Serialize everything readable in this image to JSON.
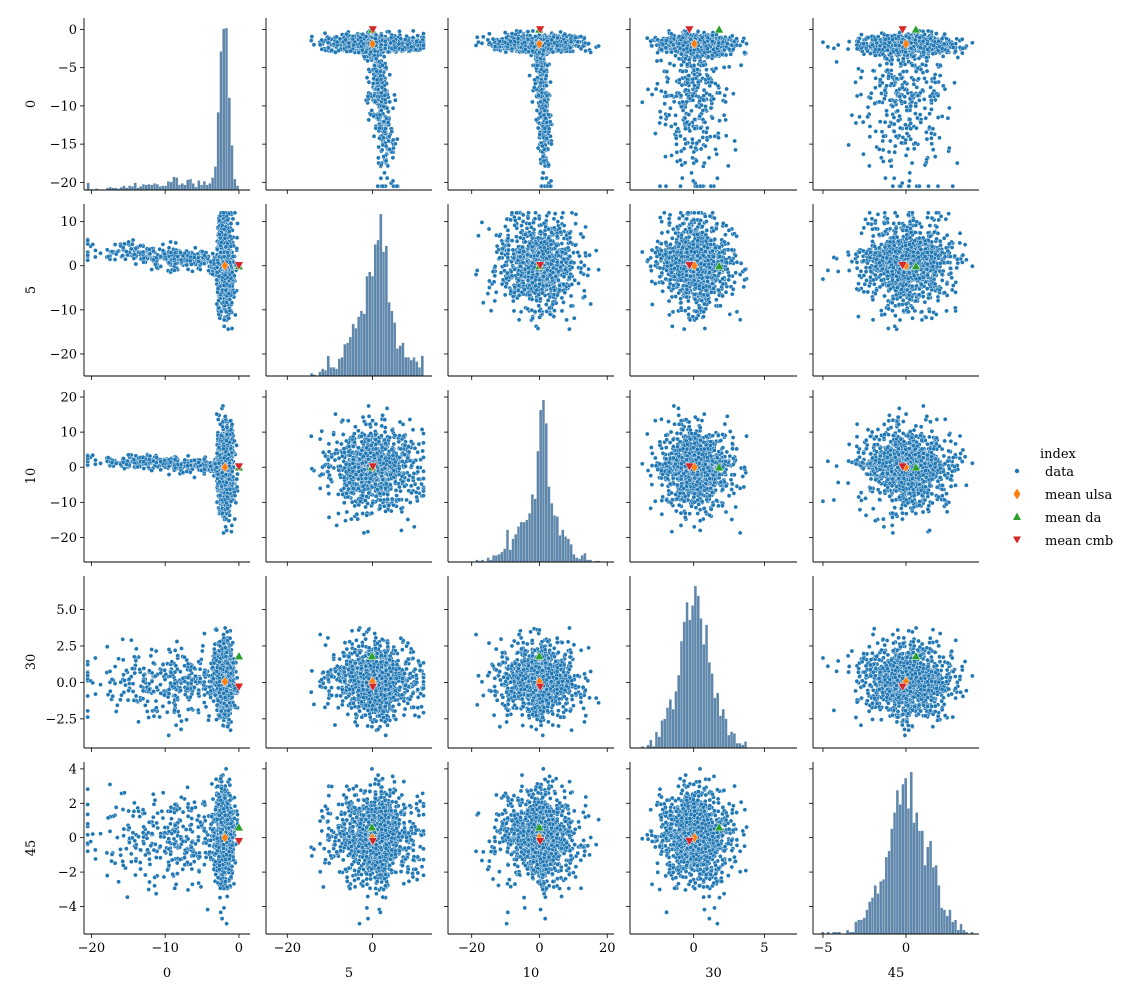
{
  "chart_data": {
    "type": "scatter",
    "variables": [
      "0",
      "5",
      "10",
      "30",
      "45"
    ],
    "axes": {
      "0": {
        "range": [
          -21,
          1.5
        ],
        "ticks": [
          0,
          -5,
          -10,
          -15,
          -20
        ],
        "xticks": [
          -20,
          -10,
          0
        ]
      },
      "5": {
        "range": [
          -25,
          14
        ],
        "ticks": [
          10,
          0,
          -10,
          -20
        ],
        "xticks": [
          -20,
          0
        ]
      },
      "10": {
        "range": [
          -27,
          22
        ],
        "ticks": [
          20,
          10,
          0,
          -10,
          -20
        ],
        "xticks": [
          -20,
          0,
          20
        ]
      },
      "30": {
        "range": [
          -4.5,
          7.3
        ],
        "ticks": [
          5.0,
          2.5,
          0.0,
          -2.5
        ],
        "tick_labels": [
          "5.0",
          "2.5",
          "0.0",
          "−2.5"
        ],
        "xticks": [
          0,
          5
        ]
      },
      "45": {
        "range": [
          -5.6,
          4.4
        ],
        "ticks": [
          4,
          2,
          0,
          -2,
          -4
        ],
        "xticks": [
          -5,
          0
        ]
      }
    },
    "diagonal": "histogram",
    "legend": {
      "title": "index",
      "placement": "right",
      "entries": [
        {
          "label": "data",
          "marker": "circle",
          "color": "#1f77b4"
        },
        {
          "label": "mean ulsa",
          "marker": "diamond",
          "color": "#ff7f0e"
        },
        {
          "label": "mean da",
          "marker": "triangle-up",
          "color": "#2ca02c"
        },
        {
          "label": "mean cmb",
          "marker": "triangle-down",
          "color": "#d62728"
        }
      ]
    },
    "means": {
      "mean ulsa": {
        "0": -1.9,
        "5": 0.0,
        "10": 0.0,
        "30": 0.05,
        "45": 0.0
      },
      "mean da": {
        "0": 0.0,
        "5": -0.1,
        "10": -0.05,
        "30": 1.8,
        "45": 0.6
      },
      "mean cmb": {
        "0": 0.0,
        "5": 0.1,
        "10": 0.2,
        "30": -0.3,
        "45": -0.2
      }
    },
    "colors": {
      "data": "#1f77b4",
      "hist": "#5f87ab"
    }
  }
}
